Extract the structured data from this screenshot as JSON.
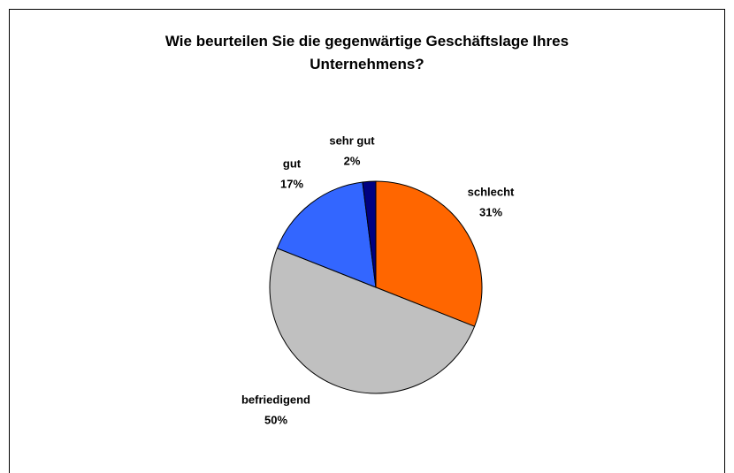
{
  "chart_data": {
    "type": "pie",
    "title": "Wie beurteilen Sie die gegenwärtige Geschäftslage Ihres Unternehmens?",
    "categories": [
      "schlecht",
      "befriedigend",
      "gut",
      "sehr gut"
    ],
    "values": [
      31,
      50,
      17,
      2
    ],
    "value_labels": [
      "31%",
      "50%",
      "17%",
      "2%"
    ],
    "colors": [
      "#ff6600",
      "#c0c0c0",
      "#3366ff",
      "#000080"
    ]
  }
}
